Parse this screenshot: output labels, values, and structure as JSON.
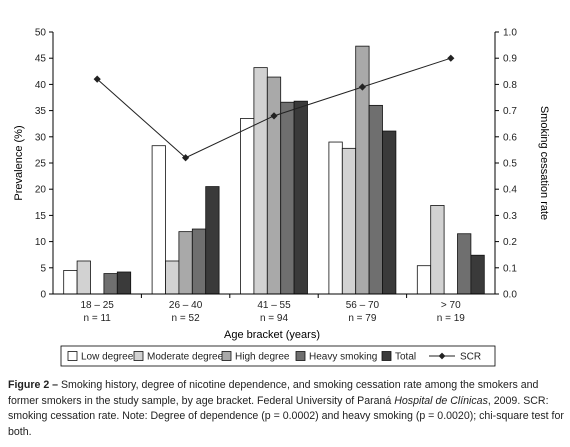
{
  "chart_data": {
    "type": "bar",
    "categories": [
      {
        "label": "18 – 25",
        "n": "n = 11"
      },
      {
        "label": "26 – 40",
        "n": "n = 52"
      },
      {
        "label": "41 – 55",
        "n": "n = 94"
      },
      {
        "label": "56 – 70",
        "n": "n = 79"
      },
      {
        "label": "> 70",
        "n": "n = 19"
      }
    ],
    "series": [
      {
        "name": "Low degree",
        "color": "#ffffff",
        "values": [
          4.5,
          28.3,
          33.5,
          29.0,
          5.4
        ]
      },
      {
        "name": "Moderate degree",
        "color": "#d2d2d2",
        "values": [
          6.3,
          6.3,
          43.2,
          27.8,
          16.9
        ]
      },
      {
        "name": "High degree",
        "color": "#a9a9a9",
        "values": [
          0,
          11.9,
          41.4,
          47.3,
          0
        ]
      },
      {
        "name": "Heavy smoking",
        "color": "#6f6f6f",
        "values": [
          3.9,
          12.4,
          36.6,
          36.0,
          11.5
        ]
      },
      {
        "name": "Total",
        "color": "#3a3a3a",
        "values": [
          4.2,
          20.5,
          36.8,
          31.1,
          7.4
        ]
      }
    ],
    "line_series": {
      "name": "SCR",
      "color": "#222222",
      "values": [
        0.82,
        0.52,
        0.68,
        0.79,
        0.9
      ]
    },
    "xlabel": "Age bracket (years)",
    "ylabel": "Prevalence (%)",
    "y2label": "Smoking cessation rate",
    "ylim": [
      0,
      50
    ],
    "y2lim": [
      0,
      1
    ],
    "yticks": [
      "0",
      "5",
      "10",
      "15",
      "20",
      "25",
      "30",
      "35",
      "40",
      "45",
      "50"
    ],
    "y2ticks": [
      "0.0",
      "0.1",
      "0.2",
      "0.3",
      "0.4",
      "0.5",
      "0.6",
      "0.7",
      "0.8",
      "0.9",
      "1.0"
    ],
    "legend_position": "bottom"
  },
  "caption": {
    "label": "Figure 2 –",
    "text1": " Smoking history, degree of nicotine dependence, and smoking cessation rate among the smokers and former smokers in the study sample, by age bracket. Federal University of Paraná ",
    "italic": "Hospital de Clínicas",
    "text2": ", 2009. SCR: smoking cessation rate. Note: Degree of dependence (p = 0.0002) and heavy smoking (p = 0.0020); chi-square test for both."
  }
}
